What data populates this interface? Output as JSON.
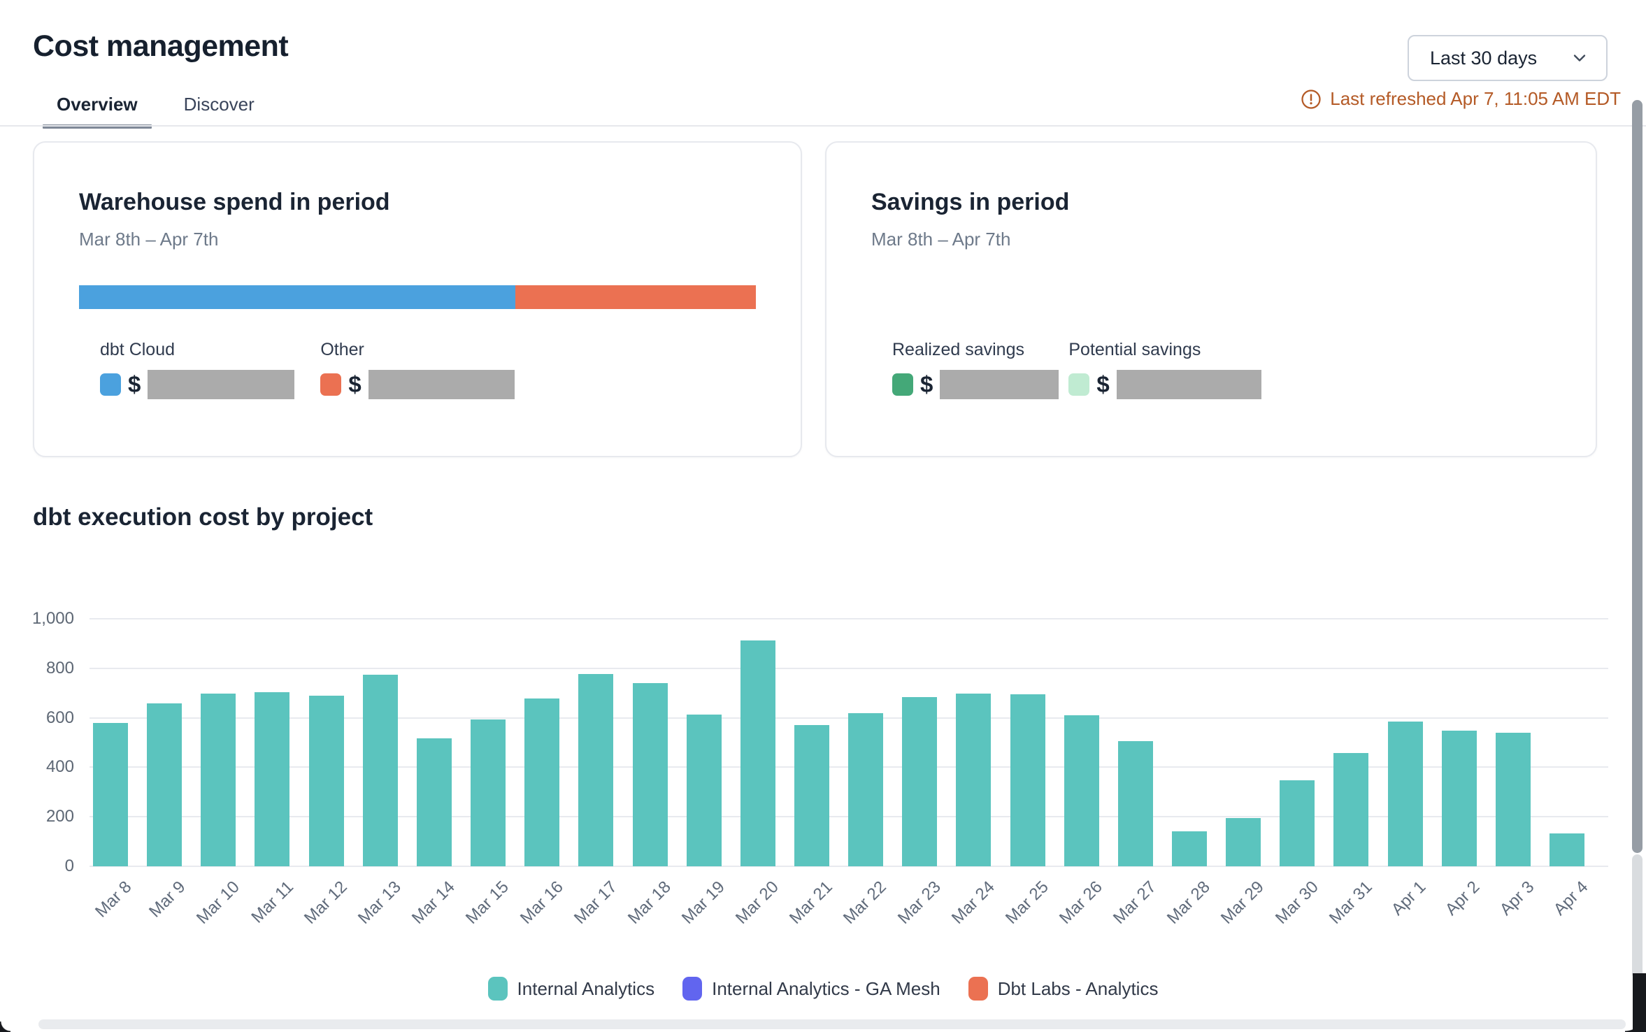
{
  "page": {
    "title": "Cost management"
  },
  "tabs": [
    {
      "label": "Overview",
      "active": true
    },
    {
      "label": "Discover",
      "active": false
    }
  ],
  "period_selector": {
    "value": "Last 30 days",
    "icon": "chevron-down-icon"
  },
  "refresh": {
    "label": "Last refreshed Apr 7, 11:05 AM EDT",
    "icon": "alert-circle-icon",
    "color": "#b45a26"
  },
  "cards": {
    "warehouse": {
      "title": "Warehouse spend in period",
      "period": "Mar 8th – Apr 7th",
      "segments": [
        {
          "label": "dbt Cloud",
          "color": "#4BA1DE",
          "pct": 64.5,
          "currency": "$",
          "value_redacted": true
        },
        {
          "label": "Other",
          "color": "#EB7152",
          "pct": 35.5,
          "currency": "$",
          "value_redacted": true
        }
      ]
    },
    "savings": {
      "title": "Savings in period",
      "period": "Mar 8th – Apr 7th",
      "items": [
        {
          "label": "Realized savings",
          "color": "#44A878",
          "currency": "$",
          "value_redacted": true
        },
        {
          "label": "Potential savings",
          "color": "#C0EBD2",
          "currency": "$",
          "value_redacted": true
        }
      ]
    }
  },
  "chart": {
    "title": "dbt execution cost by project"
  },
  "chart_data": {
    "type": "bar",
    "title": "dbt execution cost by project",
    "categories": [
      "Mar 8",
      "Mar 9",
      "Mar 10",
      "Mar 11",
      "Mar 12",
      "Mar 13",
      "Mar 14",
      "Mar 15",
      "Mar 16",
      "Mar 17",
      "Mar 18",
      "Mar 19",
      "Mar 20",
      "Mar 21",
      "Mar 22",
      "Mar 23",
      "Mar 24",
      "Mar 25",
      "Mar 26",
      "Mar 27",
      "Mar 28",
      "Mar 29",
      "Mar 30",
      "Mar 31",
      "Apr 1",
      "Apr 2",
      "Apr 3",
      "Apr 4"
    ],
    "values": [
      578,
      658,
      698,
      703,
      688,
      774,
      517,
      592,
      679,
      778,
      741,
      613,
      913,
      570,
      618,
      684,
      697,
      694,
      611,
      506,
      142,
      194,
      348,
      459,
      586,
      549,
      541,
      133
    ],
    "series_name": "Internal Analytics",
    "bar_color": "#5BC4BE",
    "xlabel": "",
    "ylabel": "",
    "ylim": [
      0,
      1000
    ],
    "yticks": [
      {
        "value": 0,
        "label": "0"
      },
      {
        "value": 200,
        "label": "200"
      },
      {
        "value": 400,
        "label": "400"
      },
      {
        "value": 600,
        "label": "600"
      },
      {
        "value": 800,
        "label": "800"
      },
      {
        "value": 1000,
        "label": "1,000"
      }
    ],
    "grid": true,
    "legend_position": "bottom",
    "legend": [
      {
        "label": "Internal Analytics",
        "color": "#5BC4BE"
      },
      {
        "label": "Internal Analytics - GA Mesh",
        "color": "#6165EF"
      },
      {
        "label": "Dbt Labs - Analytics",
        "color": "#EB7152"
      }
    ]
  }
}
